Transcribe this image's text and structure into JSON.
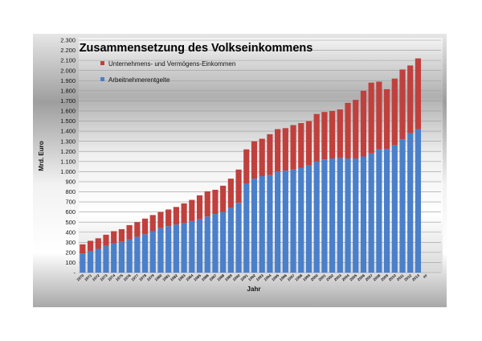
{
  "colors": {
    "wages": "#4a7fca",
    "capital": "#c0403d",
    "gridline": "#9a9a9a"
  },
  "chart_data": {
    "type": "bar",
    "stacked": true,
    "title": "Zusammensetzung des Volkseinkommens",
    "xlabel": "Jahr",
    "ylabel": "Mrd. Euro",
    "ylim": [
      0,
      2300
    ],
    "ytick_step": 100,
    "ytick_labels": [
      "-",
      "100",
      "200",
      "300",
      "400",
      "500",
      "600",
      "700",
      "800",
      "900",
      "1.000",
      "1.100",
      "1.200",
      "1.300",
      "1.400",
      "1.500",
      "1.600",
      "1.700",
      "1.800",
      "1.900",
      "2.000",
      "2.100",
      "2.200",
      "2.300"
    ],
    "grid": true,
    "legend_position": "top-left",
    "categories": [
      "1970",
      "1971",
      "1972",
      "1973",
      "1974",
      "1975",
      "1976",
      "1977",
      "1978",
      "1979",
      "1980",
      "1981",
      "1982",
      "1983",
      "1984",
      "1985",
      "1986",
      "1987",
      "1988",
      "1989",
      "1990",
      "1991",
      "1992",
      "1993",
      "1994",
      "1995",
      "1996",
      "1997",
      "1998",
      "1999",
      "2000",
      "2001",
      "2002",
      "2003",
      "2004",
      "2005",
      "2006",
      "2007",
      "2008",
      "2009",
      "2010",
      "2011",
      "2012",
      "2013",
      "##"
    ],
    "series": [
      {
        "name": "Arbeitnehmerentgelte",
        "values": [
          190,
          215,
          235,
          265,
          290,
          305,
          330,
          355,
          380,
          410,
          440,
          460,
          475,
          490,
          510,
          530,
          555,
          580,
          600,
          640,
          690,
          880,
          930,
          955,
          965,
          1000,
          1010,
          1020,
          1035,
          1060,
          1100,
          1120,
          1130,
          1135,
          1130,
          1130,
          1150,
          1180,
          1220,
          1225,
          1260,
          1320,
          1380,
          1420,
          0
        ]
      },
      {
        "name": "Unternehmens- und Vermögens-Einkommen",
        "values": [
          90,
          100,
          105,
          110,
          120,
          125,
          140,
          145,
          155,
          160,
          160,
          165,
          175,
          195,
          210,
          235,
          250,
          240,
          260,
          290,
          330,
          340,
          370,
          370,
          405,
          420,
          420,
          440,
          445,
          440,
          470,
          470,
          470,
          480,
          550,
          580,
          650,
          700,
          670,
          590,
          660,
          690,
          670,
          700,
          0
        ]
      }
    ]
  }
}
